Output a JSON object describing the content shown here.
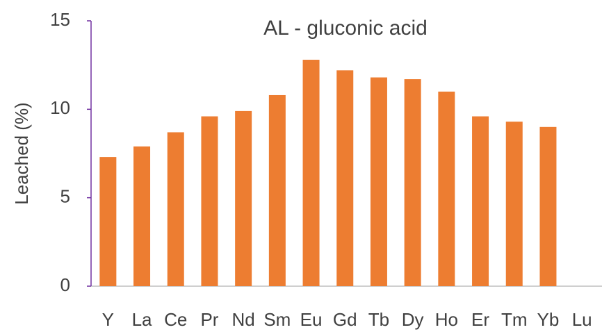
{
  "chart_data": {
    "type": "bar",
    "title": "AL - gluconic acid",
    "y_label": "Leached (%)",
    "categories": [
      "Y",
      "La",
      "Ce",
      "Pr",
      "Nd",
      "Sm",
      "Eu",
      "Gd",
      "Tb",
      "Dy",
      "Ho",
      "Er",
      "Tm",
      "Yb",
      "Lu"
    ],
    "values": [
      7.3,
      7.9,
      8.7,
      9.6,
      9.9,
      10.8,
      12.8,
      12.2,
      11.8,
      11.7,
      11.0,
      9.6,
      9.3,
      9.0,
      null
    ],
    "color": "#ed7d31",
    "ylim": [
      0,
      15
    ],
    "yticks": [
      0,
      5,
      10,
      15
    ],
    "grid": false
  }
}
